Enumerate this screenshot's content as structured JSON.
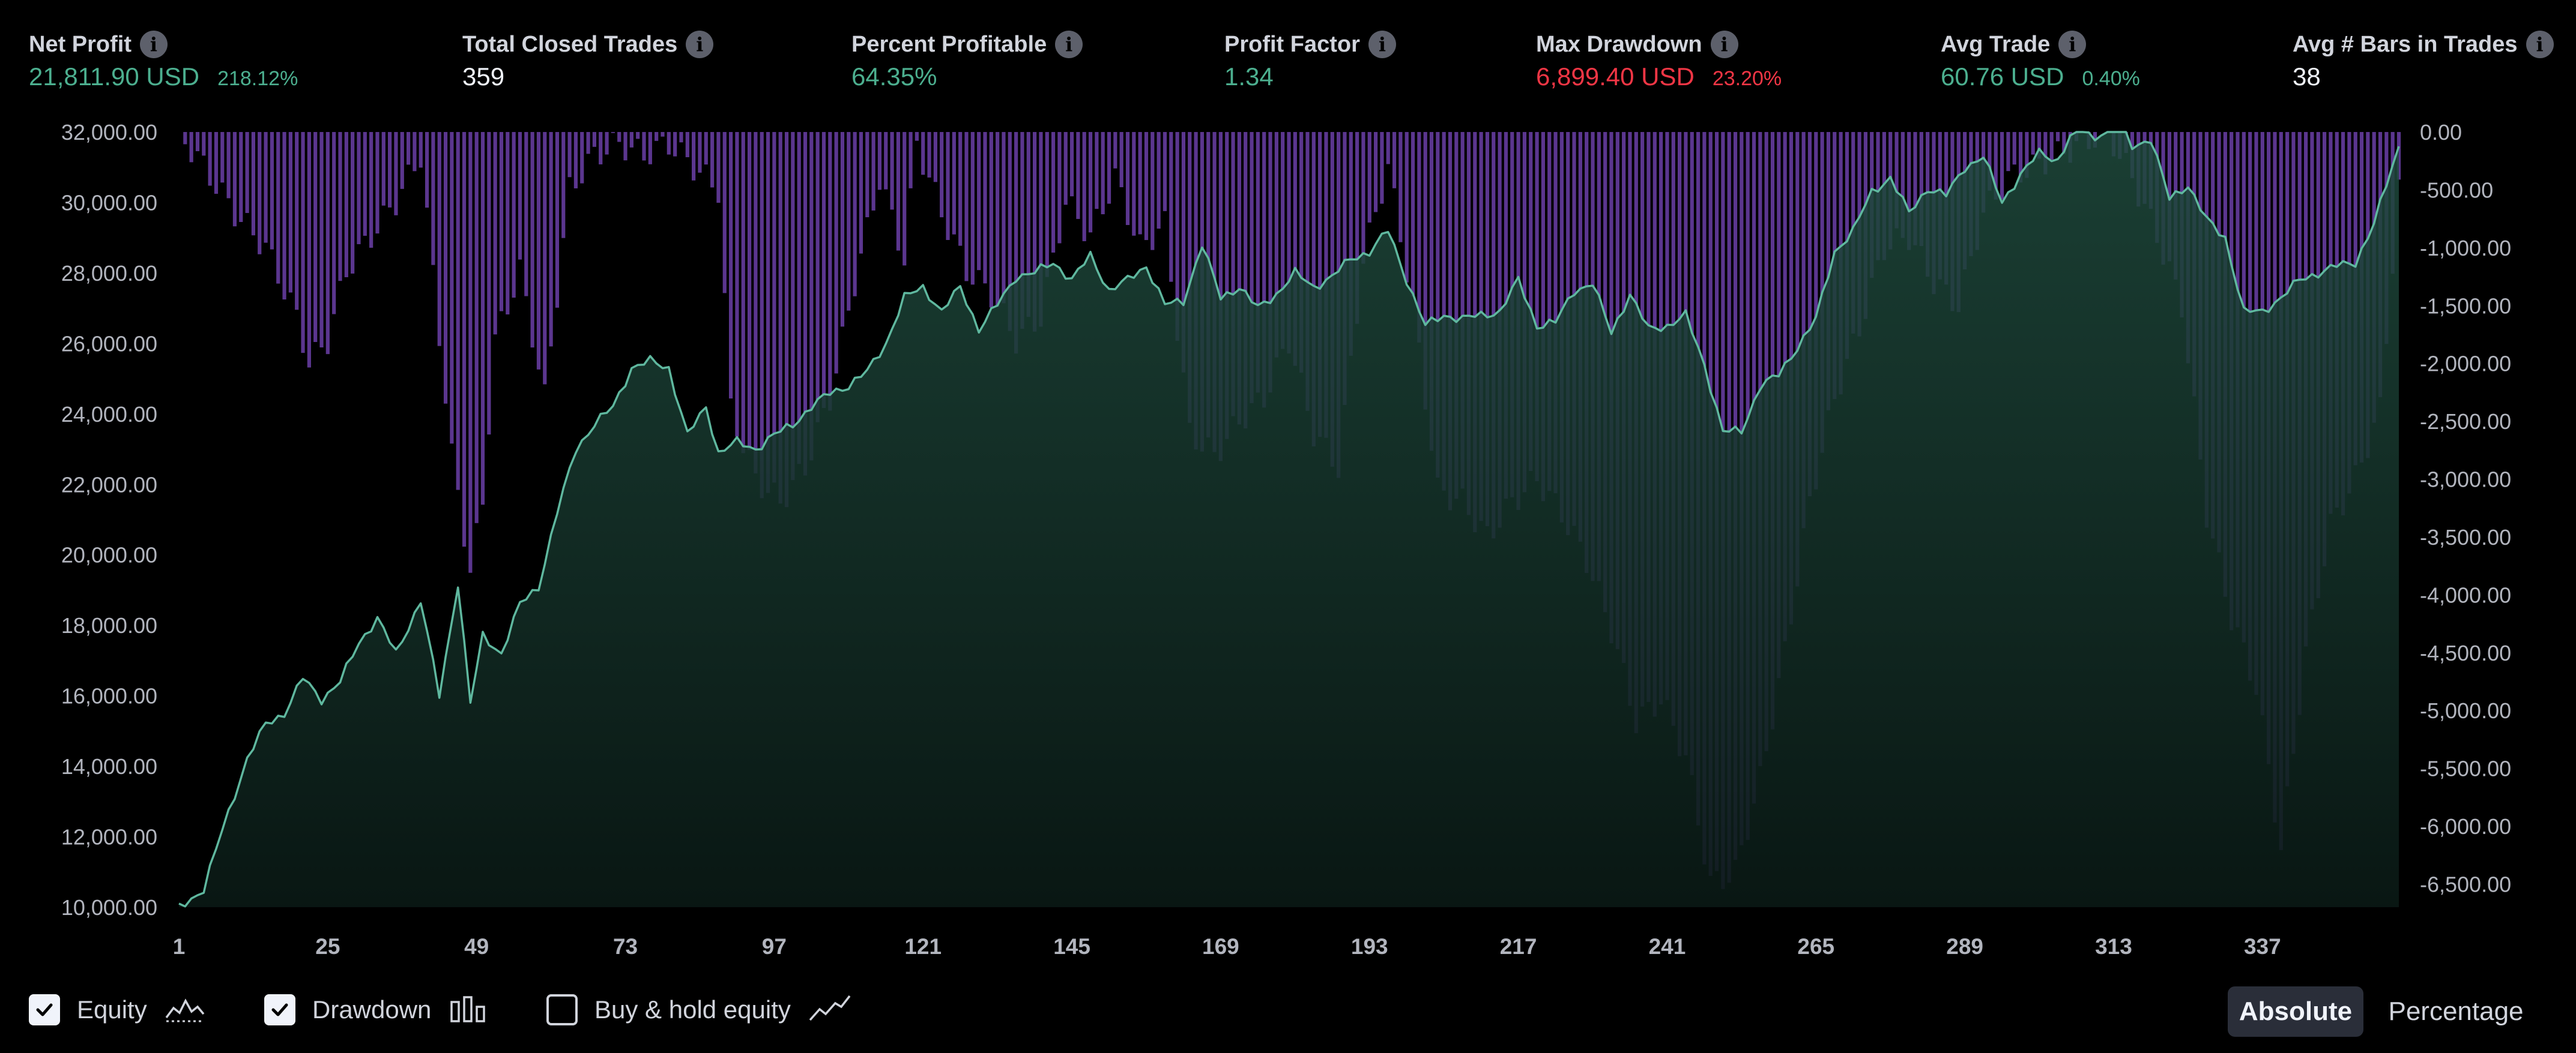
{
  "stats": [
    {
      "title": "Net Profit",
      "value": "21,811.90 USD",
      "pct": "218.12%",
      "tone": "green"
    },
    {
      "title": "Total Closed Trades",
      "value": "359",
      "pct": "",
      "tone": "neutral"
    },
    {
      "title": "Percent Profitable",
      "value": "64.35%",
      "pct": "",
      "tone": "green"
    },
    {
      "title": "Profit Factor",
      "value": "1.34",
      "pct": "",
      "tone": "green"
    },
    {
      "title": "Max Drawdown",
      "value": "6,899.40 USD",
      "pct": "23.20%",
      "tone": "red"
    },
    {
      "title": "Avg Trade",
      "value": "60.76 USD",
      "pct": "0.40%",
      "tone": "green"
    },
    {
      "title": "Avg # Bars in Trades",
      "value": "38",
      "pct": "",
      "tone": "neutral"
    }
  ],
  "info_icon": "info-icon",
  "legend": {
    "equity": {
      "label": "Equity",
      "checked": true,
      "icon": "equity-line-icon"
    },
    "drawdown": {
      "label": "Drawdown",
      "checked": true,
      "icon": "drawdown-bars-icon"
    },
    "buyhold": {
      "label": "Buy & hold equity",
      "checked": false,
      "icon": "buyhold-line-icon"
    }
  },
  "view_toggle": {
    "absolute": "Absolute",
    "percentage": "Percentage",
    "selected": "Absolute"
  },
  "colors": {
    "equity_line": "#5fb89f",
    "drawdown_bar": "#6b3fa8",
    "positive": "#4caf8f",
    "negative": "#f23645"
  },
  "chart_data": {
    "type": "area",
    "x_ticks": [
      "1",
      "25",
      "49",
      "73",
      "97",
      "121",
      "145",
      "169",
      "193",
      "217",
      "241",
      "265",
      "289",
      "313",
      "337"
    ],
    "x_range": [
      1,
      359
    ],
    "y_left_ticks": [
      "32,000.00",
      "30,000.00",
      "28,000.00",
      "26,000.00",
      "24,000.00",
      "22,000.00",
      "20,000.00",
      "18,000.00",
      "16,000.00",
      "14,000.00",
      "12,000.00",
      "10,000.00"
    ],
    "y_left_range": [
      10000,
      32000
    ],
    "y_right_ticks": [
      "0.00",
      "-500.00",
      "-1,000.00",
      "-1,500.00",
      "-2,000.00",
      "-2,500.00",
      "-3,000.00",
      "-3,500.00",
      "-4,000.00",
      "-4,500.00",
      "-5,000.00",
      "-5,500.00",
      "-6,000.00",
      "-6,500.00"
    ],
    "y_right_range": [
      -6700,
      0
    ],
    "series": [
      {
        "name": "Equity",
        "x": [
          1,
          5,
          8,
          12,
          15,
          18,
          21,
          24,
          27,
          30,
          33,
          36,
          40,
          43,
          46,
          48,
          50,
          53,
          56,
          59,
          62,
          65,
          68,
          71,
          74,
          77,
          80,
          83,
          86,
          88,
          91,
          94,
          97,
          100,
          103,
          106,
          109,
          112,
          115,
          118,
          121,
          124,
          127,
          130,
          133,
          136,
          139,
          142,
          145,
          148,
          151,
          154,
          157,
          160,
          163,
          166,
          169,
          172,
          175,
          178,
          181,
          184,
          187,
          190,
          193,
          196,
          199,
          202,
          205,
          208,
          211,
          214,
          217,
          220,
          223,
          226,
          229,
          232,
          235,
          238,
          241,
          244,
          247,
          250,
          253,
          256,
          259,
          262,
          265,
          268,
          271,
          274,
          277,
          280,
          283,
          286,
          289,
          292,
          295,
          298,
          301,
          304,
          307,
          310,
          313,
          316,
          319,
          322,
          325,
          328,
          331,
          334,
          337,
          340,
          343,
          346,
          349,
          352,
          355,
          359
        ],
        "values": [
          10000,
          10500,
          12200,
          14200,
          15200,
          15500,
          16500,
          15900,
          16400,
          17500,
          18200,
          17200,
          18700,
          16000,
          19200,
          15800,
          17700,
          17200,
          18600,
          19100,
          21200,
          23000,
          23700,
          24200,
          25300,
          25500,
          25300,
          23400,
          24200,
          22900,
          23200,
          23000,
          23400,
          23700,
          24200,
          24600,
          24800,
          25200,
          26000,
          27300,
          27600,
          26900,
          27600,
          26400,
          27100,
          27900,
          28000,
          28300,
          27800,
          28500,
          27500,
          27800,
          28200,
          27100,
          27200,
          28800,
          27300,
          27600,
          27000,
          27400,
          28000,
          27600,
          27900,
          28400,
          28600,
          29200,
          27800,
          26500,
          26800,
          26700,
          26800,
          26900,
          27800,
          26500,
          26600,
          27500,
          27700,
          26300,
          27400,
          26400,
          26500,
          26800,
          25400,
          23500,
          23500,
          24800,
          25100,
          25900,
          26700,
          28600,
          29200,
          30300,
          30700,
          29700,
          30400,
          30200,
          31000,
          31300,
          30000,
          30800,
          31400,
          31200,
          32200,
          31800,
          32500,
          31600,
          31800,
          30100,
          30500,
          29500,
          29000,
          26900,
          26900,
          27300,
          27800,
          28000,
          28200,
          28300,
          29400,
          31600
        ]
      },
      {
        "name": "Drawdown",
        "x": [
          1,
          5,
          10,
          15,
          20,
          22,
          25,
          28,
          32,
          36,
          40,
          45,
          48,
          50,
          52,
          56,
          60,
          64,
          68,
          72,
          76,
          80,
          84,
          88,
          90,
          94,
          98,
          102,
          106,
          110,
          114,
          118,
          120,
          124,
          128,
          132,
          136,
          140,
          144,
          148,
          152,
          156,
          160,
          164,
          168,
          172,
          176,
          180,
          184,
          188,
          192,
          196,
          200,
          204,
          208,
          212,
          216,
          220,
          224,
          228,
          232,
          236,
          240,
          244,
          248,
          252,
          256,
          260,
          264,
          268,
          272,
          276,
          280,
          284,
          288,
          292,
          296,
          300,
          304,
          308,
          312,
          316,
          320,
          324,
          328,
          332,
          336,
          340,
          344,
          348,
          352,
          356,
          359
        ],
        "values": [
          0,
          -300,
          -700,
          -1000,
          -1600,
          -2000,
          -1800,
          -1200,
          -900,
          -600,
          -200,
          -2800,
          -3800,
          -3200,
          -1800,
          -1200,
          -2300,
          -500,
          -200,
          -100,
          -200,
          -100,
          -300,
          -500,
          -2400,
          -3000,
          -3200,
          -2900,
          -2300,
          -1300,
          -400,
          -1100,
          -100,
          -700,
          -1200,
          -1400,
          -1800,
          -1600,
          -600,
          -900,
          -400,
          -1000,
          -800,
          -2600,
          -2800,
          -2500,
          -2300,
          -1800,
          -2600,
          -2900,
          -1100,
          -300,
          -1500,
          -3100,
          -3200,
          -3500,
          -3200,
          -3000,
          -3300,
          -3700,
          -4300,
          -5100,
          -4900,
          -5400,
          -6500,
          -6400,
          -5600,
          -4500,
          -3200,
          -2300,
          -1700,
          -1000,
          -900,
          -1300,
          -1500,
          -700,
          -400,
          -300,
          -200,
          -100,
          0,
          -400,
          -900,
          -1500,
          -3300,
          -4200,
          -4800,
          -6200,
          -4500,
          -3400,
          -3000,
          -2400,
          -500
        ]
      }
    ],
    "grid": false
  }
}
